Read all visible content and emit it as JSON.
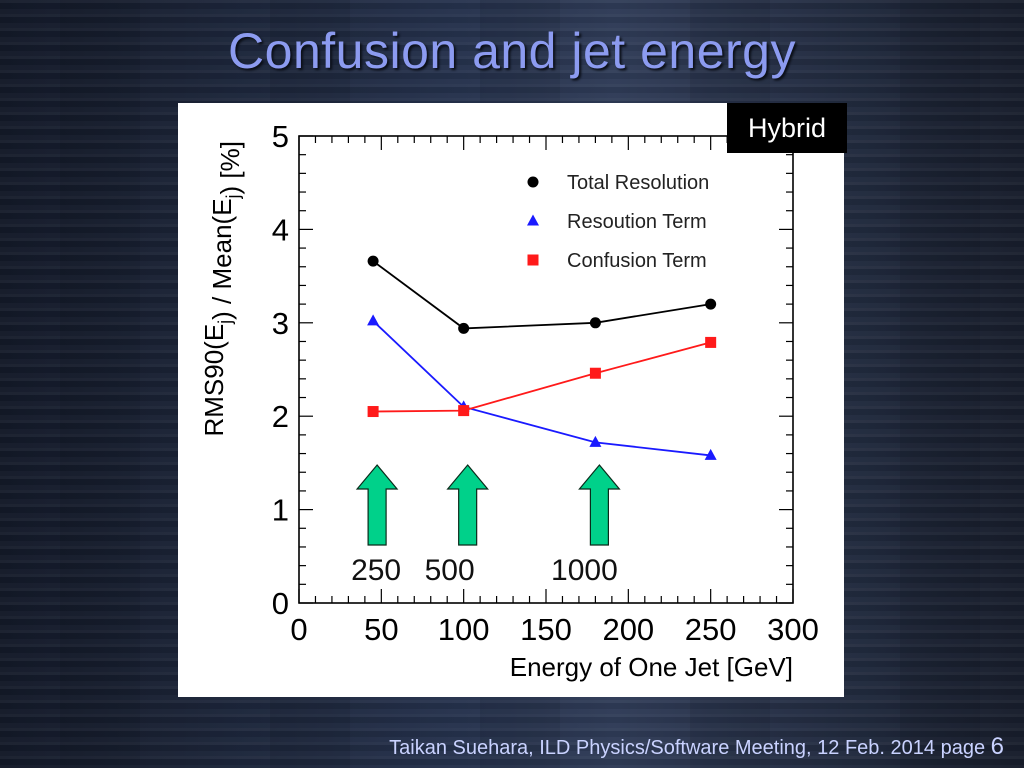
{
  "slide": {
    "title": "Confusion and jet energy",
    "badge": "Hybrid",
    "footer_text": "Taikan Suehara, ILD Physics/Software Meeting, 12 Feb. 2014",
    "page_label": "page",
    "page_number": "6"
  },
  "colors": {
    "total": "#000000",
    "resolution": "#1a1aff",
    "confusion": "#ff1a1a",
    "arrow": "#00d18a",
    "title": "#8c9bf0"
  },
  "chart_data": {
    "type": "line",
    "xlabel": "Energy of One Jet  [GeV]",
    "ylabel": "RMS90(E",
    "ylabel_sub1": "j",
    "ylabel_mid": ") / Mean(E",
    "ylabel_sub2": "j",
    "ylabel_end": ")  [%]",
    "xlim": [
      0,
      300
    ],
    "ylim": [
      0,
      5
    ],
    "xticks": [
      0,
      50,
      100,
      150,
      200,
      250,
      300
    ],
    "yticks": [
      0,
      1,
      2,
      3,
      4,
      5
    ],
    "legend_position": "top-right",
    "series": [
      {
        "name": "Total Resolution",
        "marker": "circle",
        "color": "#000000",
        "x": [
          45,
          100,
          180,
          250
        ],
        "y": [
          3.66,
          2.94,
          3.0,
          3.2
        ]
      },
      {
        "name": "Resoution Term",
        "marker": "triangle",
        "color": "#1a1aff",
        "x": [
          45,
          100,
          180,
          250
        ],
        "y": [
          3.02,
          2.1,
          1.72,
          1.58
        ]
      },
      {
        "name": "Confusion Term",
        "marker": "square",
        "color": "#ff1a1a",
        "x": [
          45,
          100,
          180,
          250
        ],
        "y": [
          2.05,
          2.06,
          2.46,
          2.79
        ]
      }
    ],
    "annotations": [
      {
        "x": 45,
        "label": "250"
      },
      {
        "x": 100,
        "label": "500"
      },
      {
        "x": 180,
        "label": "1000"
      }
    ]
  }
}
